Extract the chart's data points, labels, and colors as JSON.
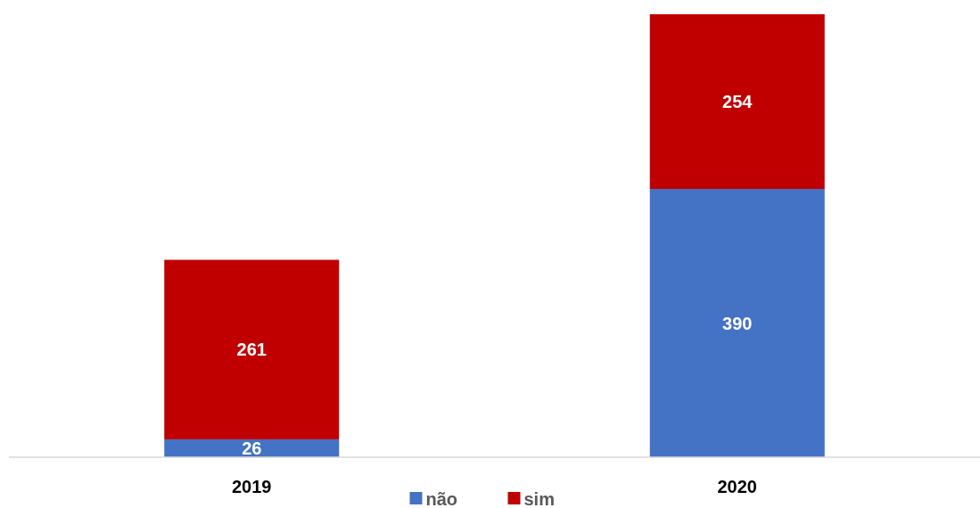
{
  "chart_data": {
    "type": "bar",
    "stacked": true,
    "categories": [
      "2019",
      "2020"
    ],
    "series": [
      {
        "name": "não",
        "color": "#4472c4",
        "values": [
          26,
          390
        ]
      },
      {
        "name": "sim",
        "color": "#c00000",
        "values": [
          261,
          254
        ]
      }
    ],
    "data_labels": true,
    "legend": "bottom"
  }
}
